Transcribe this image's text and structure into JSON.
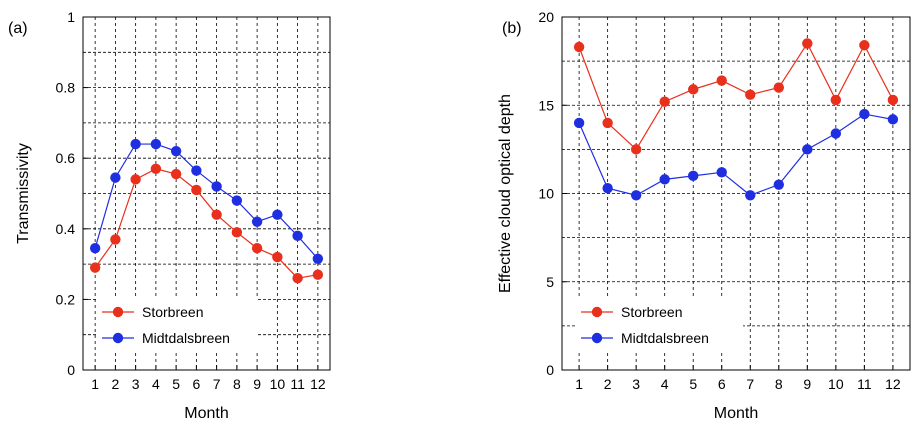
{
  "colors": {
    "storbreen": "#e8301c",
    "midtdalsbreen": "#1f2fe0"
  },
  "chart_data": [
    {
      "type": "line",
      "panel_label": "(a)",
      "x": [
        1,
        2,
        3,
        4,
        5,
        6,
        7,
        8,
        9,
        10,
        11,
        12
      ],
      "xticks": [
        "1",
        "2",
        "3",
        "4",
        "5",
        "6",
        "7",
        "8",
        "9",
        "10",
        "11",
        "12"
      ],
      "xlabel": "Month",
      "ylabel": "Transmissivity",
      "ylim": [
        0,
        1
      ],
      "yticks": [
        "0",
        "0.2",
        "0.4",
        "0.6",
        "0.8",
        "1"
      ],
      "ytick_values": [
        0,
        0.2,
        0.4,
        0.6,
        0.8,
        1
      ],
      "grid": true,
      "legend_position": "bottom-left",
      "series": [
        {
          "name": "Storbreen",
          "values": [
            0.29,
            0.37,
            0.54,
            0.57,
            0.555,
            0.51,
            0.44,
            0.39,
            0.345,
            0.32,
            0.26,
            0.27
          ]
        },
        {
          "name": "Midtdalsbreen",
          "values": [
            0.345,
            0.545,
            0.64,
            0.64,
            0.62,
            0.565,
            0.52,
            0.48,
            0.42,
            0.44,
            0.38,
            0.315
          ]
        }
      ]
    },
    {
      "type": "line",
      "panel_label": "(b)",
      "x": [
        1,
        2,
        3,
        4,
        5,
        6,
        7,
        8,
        9,
        10,
        11,
        12
      ],
      "xticks": [
        "1",
        "2",
        "3",
        "4",
        "5",
        "6",
        "7",
        "8",
        "9",
        "10",
        "11",
        "12"
      ],
      "xlabel": "Month",
      "ylabel": "Effective cloud optical depth",
      "ylim": [
        0,
        20
      ],
      "yticks": [
        "0",
        "5",
        "10",
        "15",
        "20"
      ],
      "ytick_values": [
        0,
        5,
        10,
        15,
        20
      ],
      "grid": true,
      "legend_position": "bottom-left",
      "series": [
        {
          "name": "Storbreen",
          "values": [
            18.3,
            14.0,
            12.5,
            15.2,
            15.9,
            16.4,
            15.6,
            16.0,
            18.5,
            15.3,
            18.4,
            15.3
          ]
        },
        {
          "name": "Midtdalsbreen",
          "values": [
            14.0,
            10.3,
            9.9,
            10.8,
            11.0,
            11.2,
            9.9,
            10.5,
            12.5,
            13.4,
            14.5,
            14.2
          ]
        }
      ]
    }
  ]
}
